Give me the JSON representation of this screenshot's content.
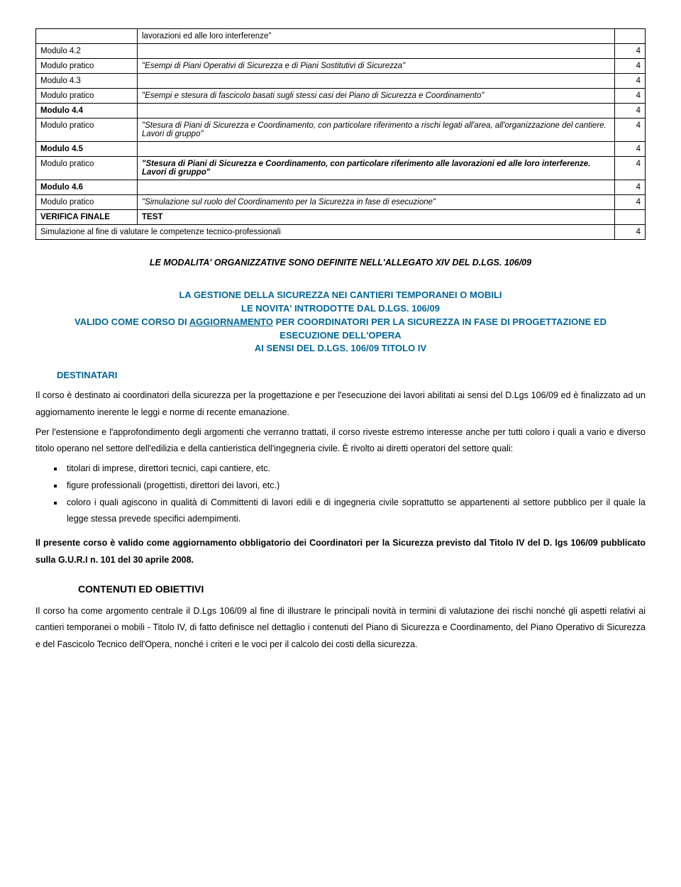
{
  "table": {
    "rows": [
      {
        "c1": "",
        "c2": "lavorazioni ed alle loro interferenze\"",
        "c3": "",
        "c2_class": ""
      },
      {
        "c1": "Modulo 4.2",
        "c2": "",
        "c3": "4"
      },
      {
        "c1": "Modulo pratico",
        "c2": "\"Esempi di Piani Operativi di Sicurezza e di Piani Sostitutivi di Sicurezza\"",
        "c3": "4",
        "c2_class": "italic"
      },
      {
        "c1": "Modulo 4.3",
        "c2": "",
        "c3": "4"
      },
      {
        "c1": "Modulo pratico",
        "c2": "\"Esempi e stesura di fascicolo basati sugli stessi casi dei Piano di Sicurezza e Coordinamento\"",
        "c3": "4",
        "c2_class": "italic"
      },
      {
        "c1": "Modulo 4.4",
        "c2": "",
        "c3": "4",
        "c1_class": "bold"
      },
      {
        "c1": "Modulo pratico",
        "c2": "\"Stesura di Piani di Sicurezza e Coordinamento, con particolare riferimento a rischi legati all'area, all'organizzazione del cantiere. Lavori di gruppo\"",
        "c3": "4",
        "c2_class": "italic"
      },
      {
        "c1": "Modulo 4.5",
        "c2": "",
        "c3": "4",
        "c1_class": "bold"
      },
      {
        "c1": "Modulo pratico",
        "c2": "\"Stesura di Piani di Sicurezza e Coordinamento, con particolare riferimento alle lavorazioni ed alle loro interferenze. Lavori di gruppo\"",
        "c3": "4",
        "c2_class": "bold-italic"
      },
      {
        "c1": "Modulo 4.6",
        "c2": "",
        "c3": "4",
        "c1_class": "bold"
      },
      {
        "c1": "Modulo pratico",
        "c2": "\"Simulazione sul ruolo del Coordinamento per la Sicurezza in fase di esecuzione\"",
        "c3": "4",
        "c2_class": "italic"
      },
      {
        "c1": "VERIFICA FINALE",
        "c2": "TEST",
        "c3": "",
        "c1_class": "bold",
        "c2_class": "bold"
      }
    ],
    "final_row": {
      "text": "Simulazione al fine di valutare le competenze tecnico-professionali",
      "hours": "4"
    }
  },
  "allegato": "LE MODALITA' ORGANIZZATIVE SONO DEFINITE NELL'ALLEGATO XIV  DEL D.LGS. 106/09",
  "course_title": {
    "l1": "LA GESTIONE DELLA SICUREZZA NEI CANTIERI TEMPORANEI O MOBILI",
    "l2": "LE NOVITA' INTRODOTTE DAL D.LGS. 106/09",
    "l3a": "VALIDO COME CORSO DI ",
    "l3u": "AGGIORNAMENTO",
    "l3b": " PER COORDINATORI PER LA SICUREZZA IN FASE DI PROGETTAZIONE ED ESECUZIONE DELL'OPERA",
    "l5": "AI SENSI DEL D.LGS. 106/09 TITOLO IV"
  },
  "destinatari": {
    "heading": "DESTINATARI",
    "p1": "Il corso è destinato ai coordinatori della sicurezza per la progettazione e per l'esecuzione dei lavori abilitati ai sensi del D.Lgs 106/09 ed è finalizzato ad un aggiornamento inerente le leggi e norme di recente emanazione.",
    "p2": "Per l'estensione e l'approfondimento degli argomenti che verranno trattati, il corso riveste estremo interesse anche per tutti coloro i quali a vario e diverso titolo operano nel settore dell'edilizia e della cantieristica dell'ingegneria civile. È rivolto ai diretti operatori del settore quali:",
    "bullets": [
      "titolari di imprese, direttori tecnici, capi cantiere, etc.",
      "figure professionali (progettisti, direttori dei lavori, etc.)",
      "coloro i quali agiscono in qualità di Committenti di lavori edili e di ingegneria civile soprattutto se appartenenti al settore pubblico per il quale la legge stessa prevede specifici adempimenti."
    ],
    "p3": "Il presente corso è valido come aggiornamento obbligatorio dei Coordinatori per la Sicurezza previsto dal Titolo IV del D. lgs 106/09 pubblicato sulla G.U.R.I n. 101 del 30 aprile 2008."
  },
  "contenuti": {
    "heading": "CONTENUTI ED OBIETTIVI",
    "p1": "Il corso ha come argomento centrale il D.Lgs 106/09 al fine di illustrare le principali novità in termini di valutazione dei rischi nonché gli aspetti relativi ai cantieri temporanei o mobili - Titolo IV,  di fatto definisce nel dettaglio i contenuti del Piano di Sicurezza e Coordinamento, del Piano Operativo di Sicurezza e del Fascicolo Tecnico dell'Opera, nonché i criteri e le voci per il calcolo dei costi della sicurezza."
  }
}
